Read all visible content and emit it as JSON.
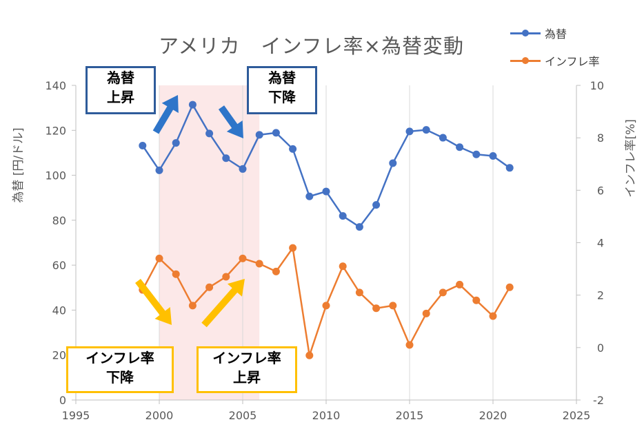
{
  "chart_data": {
    "type": "line",
    "title": "アメリカ　インフレ率×為替変動",
    "ylabel_left": "為替 [円/ドル]",
    "ylabel_right": "インフレ率[%]",
    "xlim": [
      1995,
      2025
    ],
    "ylim_left": [
      0,
      140
    ],
    "ylim_right": [
      -2,
      10
    ],
    "x_ticks": [
      "1995",
      "2000",
      "2005",
      "2010",
      "2015",
      "2020",
      "2025"
    ],
    "y_left_ticks": [
      "0",
      "20",
      "40",
      "60",
      "80",
      "100",
      "120",
      "140"
    ],
    "y_right_ticks": [
      "-2",
      "0",
      "2",
      "4",
      "6",
      "8",
      "10"
    ],
    "grid": "vertical",
    "legend_position": "top-right",
    "highlight_x_range": [
      2000,
      2006
    ],
    "series": [
      {
        "name": "為替",
        "axis": "left",
        "color": "#4472c4",
        "x": [
          1999,
          2000,
          2001,
          2002,
          2003,
          2004,
          2005,
          2006,
          2007,
          2008,
          2009,
          2010,
          2011,
          2012,
          2013,
          2014,
          2015,
          2016,
          2017,
          2018,
          2019,
          2020,
          2021
        ],
        "y": [
          113.2,
          102.2,
          114.4,
          131.4,
          118.6,
          107.6,
          102.8,
          118.0,
          118.9,
          111.7,
          90.6,
          92.8,
          81.9,
          77.0,
          86.8,
          105.4,
          119.5,
          120.2,
          116.7,
          112.5,
          109.3,
          108.6,
          103.3
        ]
      },
      {
        "name": "インフレ率",
        "axis": "right",
        "color": "#ed7d31",
        "x": [
          1999,
          2000,
          2001,
          2002,
          2003,
          2004,
          2005,
          2006,
          2007,
          2008,
          2009,
          2010,
          2011,
          2012,
          2013,
          2014,
          2015,
          2016,
          2017,
          2018,
          2019,
          2020,
          2021
        ],
        "y": [
          2.2,
          3.4,
          2.8,
          1.6,
          2.3,
          2.7,
          3.4,
          3.2,
          2.9,
          3.8,
          -0.3,
          1.6,
          3.1,
          2.1,
          1.5,
          1.6,
          0.1,
          1.3,
          2.1,
          2.4,
          1.8,
          1.2,
          2.3
        ]
      }
    ],
    "annotations": [
      {
        "line1": "為替",
        "line2": "上昇",
        "color": "#2e5b9a"
      },
      {
        "line1": "為替",
        "line2": "下降",
        "color": "#2e5b9a"
      },
      {
        "line1": "インフレ率",
        "line2": "下降",
        "color": "#ffc000"
      },
      {
        "line1": "インフレ率",
        "line2": "上昇",
        "color": "#ffc000"
      }
    ]
  }
}
